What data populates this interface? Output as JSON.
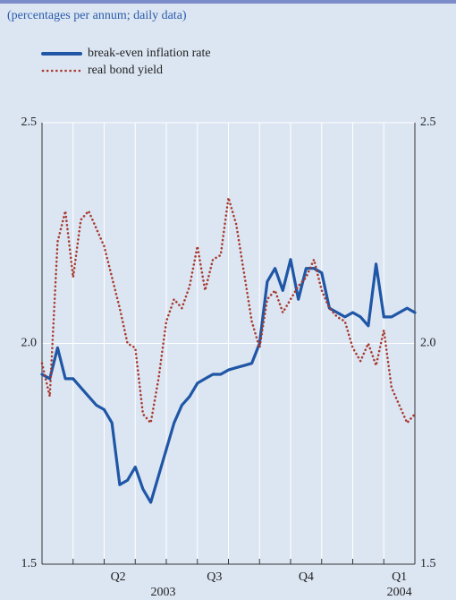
{
  "chart_data": {
    "type": "line",
    "subtitle": "(percentages per annum; daily data)",
    "x": [
      0,
      0.25,
      0.5,
      0.75,
      1,
      1.25,
      1.5,
      1.75,
      2,
      2.25,
      2.5,
      2.75,
      3,
      3.25,
      3.5,
      3.75,
      4,
      4.25,
      4.5,
      4.75,
      5,
      5.25,
      5.5,
      5.75,
      6,
      6.25,
      6.5,
      6.75,
      7,
      7.25,
      7.5,
      7.75,
      8,
      8.25,
      8.5,
      8.75,
      9,
      9.25,
      9.5,
      9.75,
      10,
      10.25,
      10.5,
      10.75,
      11,
      11.25,
      11.5,
      11.75,
      12
    ],
    "series": [
      {
        "name": "break-even inflation rate",
        "color": "#1f56a5",
        "values": [
          1.93,
          1.92,
          1.99,
          1.92,
          1.92,
          1.9,
          1.88,
          1.86,
          1.85,
          1.82,
          1.68,
          1.69,
          1.72,
          1.67,
          1.64,
          1.7,
          1.76,
          1.82,
          1.86,
          1.88,
          1.91,
          1.92,
          1.93,
          1.93,
          1.94,
          1.945,
          1.95,
          1.955,
          2.0,
          2.14,
          2.17,
          2.12,
          2.19,
          2.1,
          2.17,
          2.17,
          2.16,
          2.08,
          2.07,
          2.06,
          2.07,
          2.06,
          2.04,
          2.18,
          2.06,
          2.06,
          2.07,
          2.08,
          2.07
        ]
      },
      {
        "name": "real bond yield",
        "color": "#a83a2e",
        "dotted": true,
        "values": [
          1.955,
          1.88,
          2.23,
          2.3,
          2.15,
          2.28,
          2.3,
          2.26,
          2.22,
          2.15,
          2.08,
          2.0,
          1.99,
          1.84,
          1.82,
          1.92,
          2.05,
          2.1,
          2.08,
          2.13,
          2.22,
          2.12,
          2.19,
          2.2,
          2.33,
          2.27,
          2.16,
          2.05,
          1.99,
          2.1,
          2.12,
          2.07,
          2.1,
          2.13,
          2.15,
          2.19,
          2.12,
          2.08,
          2.06,
          2.05,
          1.99,
          1.96,
          2.0,
          1.95,
          2.03,
          1.9,
          1.86,
          1.82,
          1.84
        ]
      }
    ],
    "xlim": [
      0,
      12
    ],
    "xgrid": [
      0,
      1,
      2,
      3,
      4,
      5,
      6,
      7,
      8,
      9,
      10,
      11,
      12
    ],
    "xticks": [
      {
        "value": 2.45,
        "label": "Q2"
      },
      {
        "value": 5.55,
        "label": "Q3"
      },
      {
        "value": 8.5,
        "label": "Q4"
      },
      {
        "value": 11.5,
        "label": "Q1"
      }
    ],
    "year_ticks": [
      {
        "value": 3.9,
        "label": "2003"
      },
      {
        "value": 11.5,
        "label": "2004"
      }
    ],
    "ylim": [
      1.5,
      2.5
    ],
    "yticks": [
      1.5,
      {
        "value": 2,
        "label": "2.0"
      },
      2.5
    ],
    "grid": true
  }
}
